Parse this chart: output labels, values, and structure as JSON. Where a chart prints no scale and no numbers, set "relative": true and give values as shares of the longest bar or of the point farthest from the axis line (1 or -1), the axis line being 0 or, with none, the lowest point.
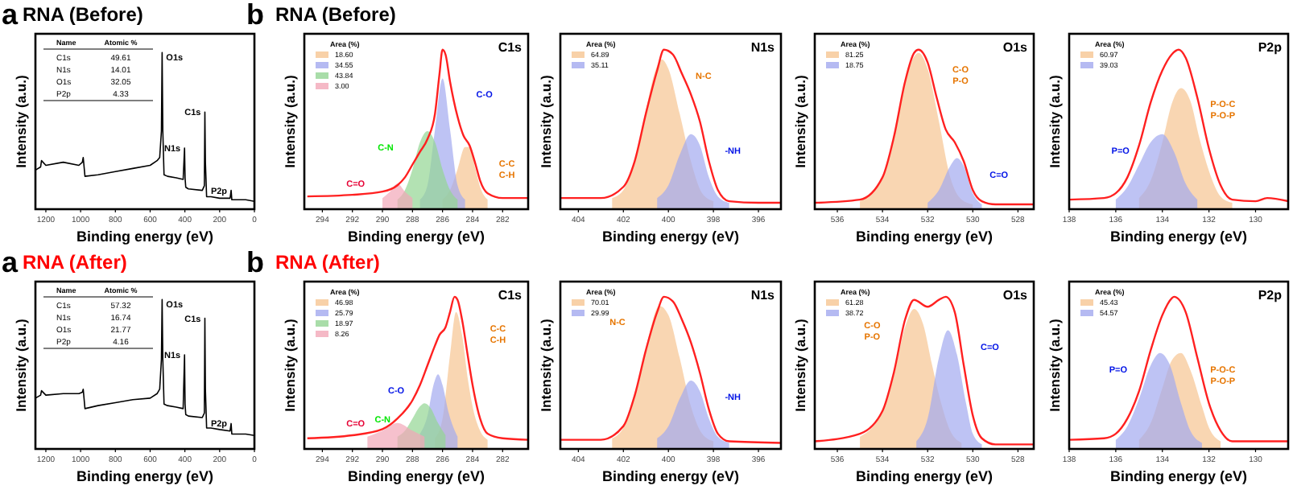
{
  "chart_data": [
    {
      "type": "line",
      "title": "RNA (Before)",
      "xlabel": "Binding energy (eV)",
      "ylabel": "Intensity (a.u.)",
      "relative": true,
      "xlim": [
        1260,
        0
      ],
      "xticks": [
        1200,
        1000,
        800,
        600,
        400,
        200,
        0
      ],
      "series": [
        {
          "color": "#000000",
          "x": [
            1260,
            1230,
            1225,
            1200,
            1100,
            1010,
            990,
            985,
            975,
            900,
            800,
            700,
            600,
            560,
            545,
            535,
            531,
            527,
            520,
            500,
            450,
            410,
            402,
            399,
            395,
            380,
            300,
            288,
            285,
            282,
            275,
            250,
            200,
            140,
            134,
            130,
            100,
            50,
            0
          ],
          "values": [
            0.25,
            0.27,
            0.31,
            0.28,
            0.3,
            0.28,
            0.3,
            0.33,
            0.21,
            0.22,
            0.24,
            0.26,
            0.28,
            0.31,
            0.33,
            0.5,
            1.0,
            0.5,
            0.22,
            0.21,
            0.2,
            0.19,
            0.39,
            0.2,
            0.14,
            0.13,
            0.12,
            0.15,
            0.62,
            0.3,
            0.08,
            0.08,
            0.07,
            0.07,
            0.12,
            0.06,
            0.06,
            0.06,
            0.05
          ]
        }
      ],
      "annotations": [
        "a",
        "Name",
        "Atomic %",
        "C1s",
        "49.61",
        "N1s",
        "14.01",
        "O1s",
        "32.05",
        "P2p",
        "4.33",
        {
          "text": "O1s",
          "x": 531,
          "y": 1.0
        },
        {
          "text": "N1s",
          "x": 402,
          "y": 0.39
        },
        {
          "text": "C1s",
          "x": 285,
          "y": 0.62
        },
        {
          "text": "P2p",
          "x": 134,
          "y": 0.12
        }
      ]
    },
    {
      "type": "line",
      "title": "RNA (Before)",
      "xlabel": "Binding energy (eV)",
      "ylabel": "Intensity (a.u.)",
      "relative": true,
      "xlim": [
        295.2,
        280.3
      ],
      "xticks": [
        294,
        292,
        290,
        288,
        286,
        284,
        282
      ],
      "legend": "top left",
      "legend_title": "Area (%)",
      "series": [
        {
          "type": "area",
          "name": "18.60",
          "color": "#f6c592",
          "x": [
            286,
            285.5,
            285,
            284.5,
            284.2,
            283.8,
            283.5,
            283
          ],
          "values": [
            0.06,
            0.12,
            0.25,
            0.39,
            0.39,
            0.25,
            0.14,
            0.06
          ]
        },
        {
          "type": "area",
          "name": "34.55",
          "color": "#a3a9ef",
          "x": [
            287.5,
            287,
            286.5,
            286,
            285.5,
            285,
            284.5
          ],
          "values": [
            0.06,
            0.15,
            0.5,
            0.82,
            0.5,
            0.15,
            0.06
          ]
        },
        {
          "type": "area",
          "name": "43.84",
          "color": "#93d593",
          "x": [
            289,
            288.5,
            288,
            287.5,
            287,
            286.5,
            286,
            285.5,
            285
          ],
          "values": [
            0.06,
            0.12,
            0.25,
            0.42,
            0.49,
            0.42,
            0.25,
            0.12,
            0.06
          ]
        },
        {
          "type": "area",
          "name": "3.00",
          "color": "#f2a7b8",
          "x": [
            290,
            289.5,
            289,
            288.5,
            288
          ],
          "values": [
            0.07,
            0.11,
            0.16,
            0.11,
            0.07
          ]
        },
        {
          "color": "#ff2020",
          "x": [
            295,
            292,
            290,
            289,
            288.5,
            288,
            287.5,
            287,
            286.5,
            286.2,
            286,
            285.8,
            285.5,
            285,
            284.6,
            284.2,
            283.8,
            283.5,
            283,
            282,
            280.3
          ],
          "values": [
            0.08,
            0.09,
            0.11,
            0.15,
            0.2,
            0.28,
            0.36,
            0.44,
            0.6,
            0.85,
            1.0,
            0.97,
            0.8,
            0.58,
            0.46,
            0.4,
            0.28,
            0.18,
            0.1,
            0.07,
            0.07
          ]
        }
      ],
      "annotations": [
        "b",
        "C1s",
        "C-C\nC-H",
        "C-O",
        "C-N",
        "C=O"
      ]
    },
    {
      "type": "line",
      "xlabel": "Binding energy (eV)",
      "ylabel": "Intensity (a.u.)",
      "relative": true,
      "xlim": [
        404.8,
        395
      ],
      "xticks": [
        404,
        402,
        400,
        398,
        396
      ],
      "legend": "top left",
      "legend_title": "Area (%)",
      "series": [
        {
          "type": "area",
          "name": "64.89",
          "color": "#f6c592",
          "x": [
            402.5,
            402,
            401.5,
            401,
            400.6,
            400.3,
            400,
            399.5,
            399,
            398.5,
            398
          ],
          "values": [
            0.07,
            0.12,
            0.3,
            0.62,
            0.86,
            0.94,
            0.88,
            0.6,
            0.3,
            0.1,
            0.05
          ]
        },
        {
          "type": "area",
          "name": "35.11",
          "color": "#a3a9ef",
          "x": [
            400.5,
            400,
            399.5,
            399,
            398.6,
            398.2,
            397.8,
            397.3
          ],
          "values": [
            0.07,
            0.15,
            0.34,
            0.47,
            0.4,
            0.2,
            0.08,
            0.04
          ]
        },
        {
          "color": "#ff2020",
          "x": [
            404.8,
            403,
            402,
            401.5,
            401,
            400.5,
            400.2,
            399.8,
            399.4,
            399,
            398.6,
            398.2,
            397.8,
            397.3,
            396,
            395
          ],
          "values": [
            0.07,
            0.07,
            0.14,
            0.3,
            0.6,
            0.87,
            1.0,
            0.97,
            0.85,
            0.72,
            0.55,
            0.3,
            0.12,
            0.05,
            0.04,
            0.04
          ]
        }
      ],
      "annotations": [
        "N1s",
        "N-C",
        "-NH"
      ]
    },
    {
      "type": "line",
      "xlabel": "Binding energy (eV)",
      "ylabel": "Intensity (a.u.)",
      "relative": true,
      "xlim": [
        537,
        527.3
      ],
      "xticks": [
        536,
        534,
        532,
        530,
        528
      ],
      "legend": "top left",
      "legend_title": "Area (%)",
      "series": [
        {
          "type": "area",
          "name": "81.25",
          "color": "#f6c592",
          "x": [
            535,
            534,
            533.5,
            533,
            532.4,
            532,
            531.5,
            531,
            530.5,
            530
          ],
          "values": [
            0.05,
            0.2,
            0.45,
            0.8,
            0.98,
            0.88,
            0.55,
            0.2,
            0.06,
            0.03
          ]
        },
        {
          "type": "area",
          "name": "18.75",
          "color": "#a3a9ef",
          "x": [
            532,
            531.5,
            531,
            530.7,
            530.4,
            530,
            529.6
          ],
          "values": [
            0.04,
            0.12,
            0.27,
            0.32,
            0.27,
            0.1,
            0.03
          ]
        },
        {
          "color": "#ff2020",
          "x": [
            537,
            535,
            534,
            533.5,
            533,
            532.6,
            532.4,
            532,
            531.6,
            531.2,
            530.8,
            530.4,
            530,
            529.6,
            529,
            527.3
          ],
          "values": [
            0.04,
            0.06,
            0.2,
            0.45,
            0.8,
            0.98,
            1.0,
            0.92,
            0.7,
            0.5,
            0.42,
            0.3,
            0.12,
            0.05,
            0.03,
            0.03
          ]
        }
      ],
      "annotations": [
        "O1s",
        "C-O\nP-O",
        "C=O"
      ]
    },
    {
      "type": "line",
      "xlabel": "Binding energy (eV)",
      "ylabel": "Intensity (a.u.)",
      "relative": true,
      "xlim": [
        138,
        128.6
      ],
      "xticks": [
        138,
        136,
        134,
        132,
        130
      ],
      "legend": "top left",
      "legend_title": "Area (%)",
      "series": [
        {
          "type": "area",
          "name": "60.97",
          "color": "#f6c592",
          "x": [
            135,
            134.5,
            134,
            133.6,
            133.2,
            132.8,
            132.4,
            132,
            131.5,
            131
          ],
          "values": [
            0.07,
            0.18,
            0.42,
            0.66,
            0.76,
            0.68,
            0.44,
            0.24,
            0.08,
            0.04
          ]
        },
        {
          "type": "area",
          "name": "39.03",
          "color": "#a3a9ef",
          "x": [
            136,
            135.5,
            135,
            134.5,
            134,
            133.5,
            133,
            132.5
          ],
          "values": [
            0.06,
            0.14,
            0.28,
            0.42,
            0.47,
            0.36,
            0.16,
            0.06
          ]
        },
        {
          "color": "#ff2020",
          "x": [
            138,
            136.5,
            136,
            135.5,
            135,
            134.5,
            134,
            133.6,
            133.3,
            133,
            132.5,
            132,
            131.5,
            131,
            130,
            129.5,
            128.6
          ],
          "values": [
            0.06,
            0.07,
            0.1,
            0.2,
            0.4,
            0.67,
            0.87,
            0.97,
            1.0,
            0.95,
            0.7,
            0.38,
            0.15,
            0.06,
            0.05,
            0.07,
            0.05
          ]
        }
      ],
      "annotations": [
        "P2p",
        "P-O-C\nP-O-P",
        "P=O"
      ]
    },
    {
      "type": "line",
      "title": "RNA (After)",
      "xlabel": "Binding energy (eV)",
      "ylabel": "Intensity (a.u.)",
      "relative": true,
      "xlim": [
        1260,
        0
      ],
      "xticks": [
        1200,
        1000,
        800,
        600,
        400,
        200,
        0
      ],
      "series": [
        {
          "color": "#000000",
          "x": [
            1260,
            1230,
            1225,
            1200,
            1100,
            1010,
            990,
            985,
            975,
            900,
            800,
            700,
            600,
            560,
            545,
            535,
            531,
            527,
            520,
            500,
            450,
            410,
            402,
            399,
            395,
            380,
            300,
            288,
            285,
            282,
            275,
            250,
            200,
            140,
            134,
            130,
            100,
            50,
            0
          ],
          "values": [
            0.34,
            0.36,
            0.39,
            0.36,
            0.37,
            0.37,
            0.38,
            0.4,
            0.27,
            0.29,
            0.31,
            0.33,
            0.34,
            0.37,
            0.4,
            0.6,
            1.0,
            0.6,
            0.3,
            0.29,
            0.28,
            0.27,
            0.63,
            0.3,
            0.23,
            0.22,
            0.21,
            0.24,
            0.875,
            0.4,
            0.14,
            0.14,
            0.13,
            0.12,
            0.17,
            0.1,
            0.1,
            0.1,
            0.09
          ]
        }
      ],
      "annotations": [
        "a",
        "Name",
        "Atomic %",
        "C1s",
        "57.32",
        "N1s",
        "16.74",
        "O1s",
        "21.77",
        "P2p",
        "4.16",
        {
          "text": "O1s",
          "x": 531,
          "y": 1.0
        },
        {
          "text": "N1s",
          "x": 402,
          "y": 0.63
        },
        {
          "text": "C1s",
          "x": 285,
          "y": 0.875
        },
        {
          "text": "P2p",
          "x": 134,
          "y": 0.17
        }
      ]
    },
    {
      "type": "line",
      "title": "RNA (After)",
      "xlabel": "Binding energy (eV)",
      "ylabel": "Intensity (a.u.)",
      "relative": true,
      "xlim": [
        295.2,
        280.3
      ],
      "xticks": [
        294,
        292,
        290,
        288,
        286,
        284,
        282
      ],
      "legend": "top left",
      "legend_title": "Area (%)",
      "series": [
        {
          "type": "area",
          "name": "46.98",
          "color": "#f6c592",
          "x": [
            286.5,
            286,
            285.5,
            285.1,
            284.7,
            284.3,
            284,
            283.5,
            283
          ],
          "values": [
            0.07,
            0.2,
            0.62,
            0.9,
            0.75,
            0.45,
            0.28,
            0.12,
            0.06
          ]
        },
        {
          "type": "area",
          "name": "25.79",
          "color": "#a3a9ef",
          "x": [
            287.5,
            287,
            286.6,
            286.3,
            286,
            285.6,
            285
          ],
          "values": [
            0.1,
            0.22,
            0.42,
            0.49,
            0.42,
            0.24,
            0.08
          ]
        },
        {
          "type": "area",
          "name": "18.97",
          "color": "#93d593",
          "x": [
            289,
            288.5,
            288,
            287.5,
            287.2,
            286.8,
            286.3,
            285.8
          ],
          "values": [
            0.08,
            0.12,
            0.2,
            0.28,
            0.3,
            0.27,
            0.17,
            0.09
          ]
        },
        {
          "type": "area",
          "name": "8.26",
          "color": "#f2a7b8",
          "x": [
            291,
            290,
            289,
            288,
            287.2
          ],
          "values": [
            0.08,
            0.12,
            0.17,
            0.12,
            0.08
          ]
        },
        {
          "color": "#ff2020",
          "x": [
            295,
            292,
            290,
            289,
            288,
            287.5,
            287,
            286.5,
            286.2,
            285.8,
            285.5,
            285.2,
            285,
            284.7,
            284.3,
            284,
            283.5,
            283,
            282,
            280.3
          ],
          "values": [
            0.07,
            0.09,
            0.13,
            0.2,
            0.32,
            0.42,
            0.55,
            0.68,
            0.75,
            0.8,
            0.9,
            1.0,
            0.98,
            0.85,
            0.6,
            0.42,
            0.2,
            0.1,
            0.07,
            0.06
          ]
        }
      ],
      "annotations": [
        "b",
        "C1s",
        "C-C\nC-H",
        "C-O",
        "C-N",
        "C=O"
      ]
    },
    {
      "type": "line",
      "xlabel": "Binding energy (eV)",
      "ylabel": "Intensity (a.u.)",
      "relative": true,
      "xlim": [
        404.8,
        395
      ],
      "xticks": [
        404,
        402,
        400,
        398,
        396
      ],
      "legend": "top left",
      "legend_title": "Area (%)",
      "series": [
        {
          "type": "area",
          "name": "70.01",
          "color": "#f6c592",
          "x": [
            402.5,
            402,
            401.5,
            401,
            400.4,
            400,
            399.5,
            399,
            398.5,
            398
          ],
          "values": [
            0.07,
            0.14,
            0.35,
            0.66,
            0.94,
            0.88,
            0.6,
            0.28,
            0.1,
            0.05
          ]
        },
        {
          "type": "area",
          "name": "29.99",
          "color": "#a3a9ef",
          "x": [
            400.5,
            400,
            399.5,
            399,
            398.6,
            398.2,
            397.8,
            397.3
          ],
          "values": [
            0.07,
            0.15,
            0.33,
            0.45,
            0.38,
            0.2,
            0.08,
            0.04
          ]
        },
        {
          "color": "#ff2020",
          "x": [
            404.8,
            403,
            402,
            401.5,
            401,
            400.5,
            400.2,
            399.8,
            399.4,
            399,
            398.6,
            398.2,
            397.8,
            397.3,
            395
          ],
          "values": [
            0.06,
            0.06,
            0.15,
            0.35,
            0.65,
            0.9,
            1.0,
            0.97,
            0.85,
            0.7,
            0.5,
            0.26,
            0.1,
            0.05,
            0.04
          ]
        }
      ],
      "annotations": [
        "N1s",
        "N-C",
        "-NH"
      ]
    },
    {
      "type": "line",
      "xlabel": "Binding energy (eV)",
      "ylabel": "Intensity (a.u.)",
      "relative": true,
      "xlim": [
        537,
        527.3
      ],
      "xticks": [
        536,
        534,
        532,
        530,
        528
      ],
      "legend": "top left",
      "legend_title": "Area (%)",
      "series": [
        {
          "type": "area",
          "name": "61.28",
          "color": "#f6c592",
          "x": [
            535,
            534,
            533.5,
            533,
            532.6,
            532.2,
            531.8,
            531.4,
            531,
            530.5
          ],
          "values": [
            0.08,
            0.25,
            0.48,
            0.8,
            0.92,
            0.82,
            0.55,
            0.3,
            0.12,
            0.04
          ]
        },
        {
          "type": "area",
          "name": "38.72",
          "color": "#a3a9ef",
          "x": [
            532.5,
            532,
            531.5,
            531.1,
            530.7,
            530.3,
            530,
            529.6
          ],
          "values": [
            0.05,
            0.2,
            0.6,
            0.78,
            0.62,
            0.3,
            0.1,
            0.03
          ]
        },
        {
          "color": "#ff2020",
          "x": [
            537,
            535,
            534,
            533.5,
            533,
            532.6,
            532,
            531.5,
            531.2,
            530.8,
            530.4,
            530,
            529.6,
            529,
            527.3
          ],
          "values": [
            0.05,
            0.1,
            0.25,
            0.5,
            0.85,
            0.98,
            0.935,
            0.98,
            1.0,
            0.9,
            0.55,
            0.22,
            0.07,
            0.03,
            0.03
          ]
        }
      ],
      "annotations": [
        "O1s",
        "C-O\nP-O",
        "C=O"
      ]
    },
    {
      "type": "line",
      "xlabel": "Binding energy (eV)",
      "ylabel": "Intensity (a.u.)",
      "relative": true,
      "xlim": [
        138,
        128.6
      ],
      "xticks": [
        138,
        136,
        134,
        132,
        130
      ],
      "legend": "top left",
      "legend_title": "Area (%)",
      "series": [
        {
          "type": "area",
          "name": "45.43",
          "color": "#f6c592",
          "x": [
            135,
            134.5,
            134,
            133.6,
            133.2,
            132.8,
            132.3,
            132,
            131.5
          ],
          "values": [
            0.06,
            0.17,
            0.4,
            0.58,
            0.63,
            0.52,
            0.28,
            0.14,
            0.05
          ]
        },
        {
          "type": "area",
          "name": "54.57",
          "color": "#a3a9ef",
          "x": [
            136,
            135.5,
            135,
            134.5,
            134.1,
            133.7,
            133.2,
            132.8,
            132.3
          ],
          "values": [
            0.06,
            0.15,
            0.33,
            0.55,
            0.63,
            0.56,
            0.3,
            0.12,
            0.04
          ]
        },
        {
          "color": "#ff2020",
          "x": [
            138,
            136.5,
            136,
            135.5,
            135,
            134.5,
            134,
            133.6,
            133.5,
            133,
            132.5,
            132,
            131.5,
            131,
            129,
            128.6
          ],
          "values": [
            0.06,
            0.07,
            0.1,
            0.2,
            0.38,
            0.65,
            0.88,
            0.99,
            1.0,
            0.9,
            0.6,
            0.3,
            0.12,
            0.05,
            0.05,
            0.05
          ]
        }
      ],
      "annotations": [
        "P2p",
        "P-O-C\nP-O-P",
        "P=O"
      ]
    }
  ]
}
